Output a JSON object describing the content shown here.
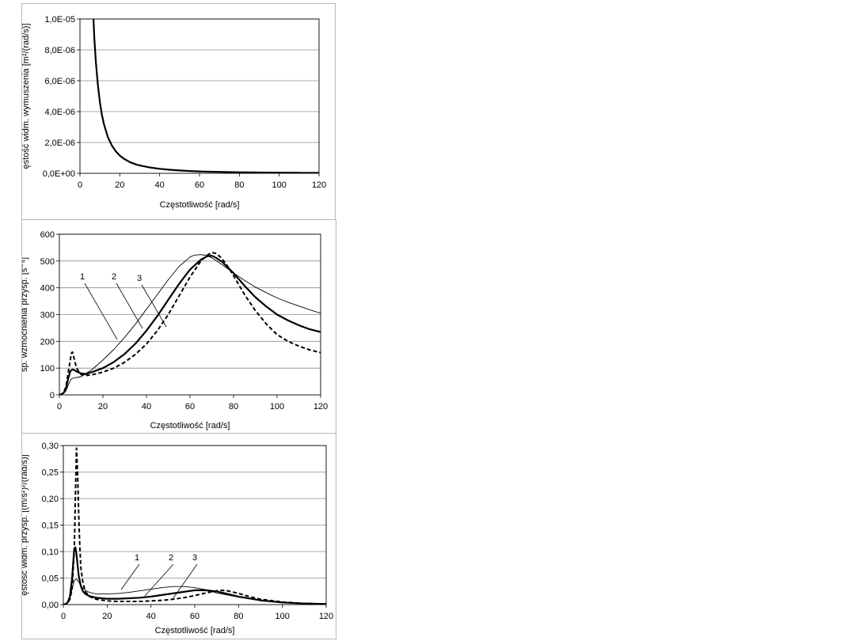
{
  "chart_data": [
    {
      "type": "line",
      "title": "",
      "xlabel": "Częstotliwość [rad/s]",
      "ylabel": "ęstość widm. wymuszenia [m²/(rad/s)]",
      "xlim": [
        0,
        120
      ],
      "ylim": [
        0,
        1e-05
      ],
      "xticks": [
        0,
        20,
        40,
        60,
        80,
        100,
        120
      ],
      "yticks": [
        0,
        2e-06,
        4e-06,
        6e-06,
        8e-06,
        1e-05
      ],
      "ytick_labels": [
        "0,0E+00",
        "2,0E-06",
        "4,0E-06",
        "6,0E-06",
        "8,0E-06",
        "1,0E-05"
      ],
      "grid": "horizontal",
      "series": [
        {
          "name": "",
          "style": "thick",
          "x": [
            6.8,
            7.2,
            8,
            9,
            10,
            11,
            12,
            14,
            16,
            18,
            20,
            22,
            25,
            28,
            30,
            35,
            40,
            45,
            50,
            55,
            60,
            65,
            70,
            75,
            80,
            90,
            100,
            110,
            120
          ],
          "y": [
            1e-05,
            8.8e-06,
            7.2e-06,
            5.7e-06,
            4.6e-06,
            3.8e-06,
            3.2e-06,
            2.35e-06,
            1.8e-06,
            1.42e-06,
            1.15e-06,
            9.5e-07,
            7.3e-07,
            5.8e-07,
            5.1e-07,
            3.8e-07,
            2.9e-07,
            2.3e-07,
            1.85e-07,
            1.5e-07,
            1.25e-07,
            1.05e-07,
            9e-08,
            7.7e-08,
            6.6e-08,
            5e-08,
            4e-08,
            3.2e-08,
            2.6e-08
          ]
        }
      ]
    },
    {
      "type": "line",
      "title": "",
      "xlabel": "Częstotliwość [rad/s]",
      "ylabel": "sp. wzmocnienia przysp. [s⁻⁴]",
      "xlim": [
        0,
        120
      ],
      "ylim": [
        0,
        600
      ],
      "xticks": [
        0,
        20,
        40,
        60,
        80,
        100,
        120
      ],
      "yticks": [
        0,
        100,
        200,
        300,
        400,
        500,
        600
      ],
      "ytick_labels": [
        "0",
        "100",
        "200",
        "300",
        "400",
        "500",
        "600"
      ],
      "grid": "horizontal",
      "series": [
        {
          "name": "1",
          "style": "thin",
          "x": [
            0,
            1,
            2,
            3,
            4,
            5,
            6,
            7,
            8,
            10,
            15,
            20,
            25,
            30,
            35,
            40,
            45,
            50,
            55,
            60,
            62,
            65,
            68,
            70,
            75,
            80,
            85,
            90,
            95,
            100,
            105,
            110,
            115,
            120
          ],
          "y": [
            0,
            2,
            6,
            15,
            35,
            55,
            62,
            64,
            65,
            68,
            95,
            130,
            170,
            215,
            265,
            320,
            375,
            430,
            480,
            515,
            522,
            524,
            520,
            512,
            485,
            455,
            428,
            403,
            382,
            362,
            346,
            332,
            318,
            305
          ]
        },
        {
          "name": "2",
          "style": "thick",
          "x": [
            0,
            1,
            2,
            3,
            4,
            5,
            6,
            7,
            8,
            10,
            12,
            15,
            20,
            25,
            30,
            35,
            40,
            45,
            50,
            55,
            60,
            65,
            68,
            70,
            72,
            75,
            80,
            85,
            90,
            95,
            100,
            105,
            110,
            115,
            120
          ],
          "y": [
            0,
            3,
            8,
            22,
            60,
            88,
            95,
            92,
            87,
            80,
            78,
            85,
            100,
            123,
            153,
            192,
            240,
            295,
            355,
            415,
            468,
            505,
            518,
            520,
            512,
            495,
            455,
            408,
            365,
            330,
            300,
            278,
            260,
            245,
            235
          ]
        },
        {
          "name": "3",
          "style": "dashed",
          "x": [
            0,
            1,
            2,
            3,
            4,
            5,
            5.5,
            6,
            6.5,
            7,
            8,
            9,
            10,
            12,
            15,
            20,
            25,
            30,
            35,
            40,
            45,
            50,
            55,
            60,
            65,
            68,
            70,
            72,
            74,
            76,
            78,
            80,
            85,
            90,
            95,
            100,
            105,
            110,
            115,
            120
          ],
          "y": [
            0,
            3,
            10,
            30,
            80,
            130,
            155,
            160,
            145,
            125,
            100,
            85,
            76,
            72,
            75,
            85,
            100,
            122,
            152,
            190,
            240,
            300,
            370,
            440,
            500,
            522,
            532,
            528,
            515,
            495,
            472,
            445,
            375,
            315,
            265,
            225,
            200,
            182,
            168,
            158
          ]
        }
      ],
      "annotations": [
        "1",
        "2",
        "3"
      ]
    },
    {
      "type": "line",
      "title": "",
      "xlabel": "Częstotliwość [rad/s]",
      "ylabel": "ęstość widm. przysp. [(m/s²)²/(rad/s)]",
      "xlim": [
        0,
        120
      ],
      "ylim": [
        0,
        0.3
      ],
      "xticks": [
        0,
        20,
        40,
        60,
        80,
        100,
        120
      ],
      "yticks": [
        0,
        0.05,
        0.1,
        0.15,
        0.2,
        0.25,
        0.3
      ],
      "ytick_labels": [
        "0,00",
        "0,05",
        "0,10",
        "0,15",
        "0,20",
        "0,25",
        "0,30"
      ],
      "grid": "horizontal",
      "series": [
        {
          "name": "1",
          "style": "thin",
          "x": [
            0,
            1,
            2,
            3,
            4,
            5,
            6,
            7,
            8,
            10,
            12,
            15,
            20,
            25,
            30,
            35,
            40,
            45,
            50,
            55,
            60,
            65,
            70,
            75,
            80,
            85,
            90,
            100,
            110,
            120
          ],
          "y": [
            0,
            0.001,
            0.004,
            0.012,
            0.03,
            0.045,
            0.048,
            0.043,
            0.035,
            0.027,
            0.023,
            0.02,
            0.02,
            0.021,
            0.023,
            0.026,
            0.029,
            0.032,
            0.034,
            0.034,
            0.032,
            0.028,
            0.022,
            0.018,
            0.014,
            0.011,
            0.008,
            0.005,
            0.003,
            0.002
          ]
        },
        {
          "name": "2",
          "style": "thick",
          "x": [
            0,
            1,
            2,
            3,
            4,
            4.5,
            5,
            5.5,
            6,
            6.5,
            7,
            8,
            9,
            10,
            12,
            15,
            20,
            25,
            30,
            35,
            40,
            45,
            50,
            55,
            60,
            65,
            70,
            75,
            80,
            90,
            100,
            110,
            120
          ],
          "y": [
            0,
            0.001,
            0.004,
            0.015,
            0.05,
            0.08,
            0.105,
            0.108,
            0.095,
            0.075,
            0.055,
            0.035,
            0.025,
            0.02,
            0.016,
            0.013,
            0.011,
            0.011,
            0.012,
            0.013,
            0.015,
            0.018,
            0.021,
            0.024,
            0.027,
            0.027,
            0.025,
            0.02,
            0.015,
            0.008,
            0.004,
            0.002,
            0.001
          ]
        },
        {
          "name": "3",
          "style": "dashed",
          "x": [
            0,
            1,
            2,
            3,
            4,
            5,
            5.5,
            6,
            6.5,
            7,
            7.5,
            8,
            9,
            10,
            12,
            15,
            20,
            25,
            30,
            35,
            40,
            45,
            50,
            55,
            60,
            65,
            70,
            72,
            75,
            80,
            85,
            90,
            100,
            110,
            120
          ],
          "y": [
            0,
            0.001,
            0.003,
            0.01,
            0.03,
            0.1,
            0.2,
            0.295,
            0.25,
            0.17,
            0.11,
            0.07,
            0.04,
            0.025,
            0.015,
            0.01,
            0.007,
            0.006,
            0.006,
            0.006,
            0.007,
            0.008,
            0.01,
            0.013,
            0.017,
            0.022,
            0.026,
            0.027,
            0.026,
            0.021,
            0.015,
            0.01,
            0.005,
            0.002,
            0.001
          ]
        }
      ],
      "annotations": [
        "1",
        "2",
        "3"
      ]
    }
  ]
}
